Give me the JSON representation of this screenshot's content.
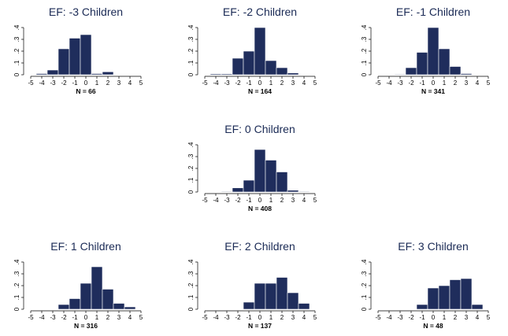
{
  "chart_data": [
    {
      "type": "bar",
      "title": "EF: -3 Children",
      "n_label": "N = 66",
      "x": [
        -5,
        -4,
        -3,
        -2,
        -1,
        0,
        1,
        2,
        3,
        4,
        5
      ],
      "x_ticks": [
        "-5",
        "-4",
        "-3",
        "-2",
        "-1",
        "0",
        "1",
        "2",
        "3",
        "4",
        "5"
      ],
      "values": [
        0,
        0.01,
        0.04,
        0.22,
        0.31,
        0.34,
        0.01,
        0.025,
        0,
        0,
        0
      ],
      "y_ticks": [
        "0",
        ".1",
        ".2",
        ".3",
        ".4"
      ],
      "ylim": [
        0,
        0.4
      ]
    },
    {
      "type": "bar",
      "title": "EF: -2 Children",
      "n_label": "N = 164",
      "x": [
        -5,
        -4,
        -3,
        -2,
        -1,
        0,
        1,
        2,
        3,
        4,
        5
      ],
      "x_ticks": [
        "-5",
        "-4",
        "-3",
        "-2",
        "-1",
        "0",
        "1",
        "2",
        "3",
        "4",
        "5"
      ],
      "values": [
        0,
        0.008,
        0.008,
        0.14,
        0.2,
        0.4,
        0.12,
        0.06,
        0.015,
        0,
        0
      ],
      "y_ticks": [
        "0",
        ".1",
        ".2",
        ".3",
        ".4"
      ],
      "ylim": [
        0,
        0.4
      ]
    },
    {
      "type": "bar",
      "title": "EF: -1 Children",
      "n_label": "N = 341",
      "x": [
        -5,
        -4,
        -3,
        -2,
        -1,
        0,
        1,
        2,
        3,
        4,
        5
      ],
      "x_ticks": [
        "-5",
        "-4",
        "-3",
        "-2",
        "-1",
        "0",
        "1",
        "2",
        "3",
        "4",
        "5"
      ],
      "values": [
        0,
        0,
        0.005,
        0.06,
        0.19,
        0.4,
        0.22,
        0.07,
        0.01,
        0,
        0
      ],
      "y_ticks": [
        "0",
        ".1",
        ".2",
        ".3",
        ".4"
      ],
      "ylim": [
        0,
        0.4
      ]
    },
    {
      "type": "bar",
      "title": "EF: 0 Children",
      "n_label": "N = 408",
      "x": [
        -5,
        -4,
        -3,
        -2,
        -1,
        0,
        1,
        2,
        3,
        4,
        5
      ],
      "x_ticks": [
        "-5",
        "-4",
        "-3",
        "-2",
        "-1",
        "0",
        "1",
        "2",
        "3",
        "4",
        "5"
      ],
      "values": [
        0,
        0,
        0.005,
        0.035,
        0.1,
        0.36,
        0.27,
        0.17,
        0.015,
        0.005,
        0
      ],
      "y_ticks": [
        "0",
        ".1",
        ".2",
        ".3",
        ".4"
      ],
      "ylim": [
        0,
        0.4
      ]
    },
    {
      "type": "bar",
      "title": "EF: 1 Children",
      "n_label": "N = 316",
      "x": [
        -5,
        -4,
        -3,
        -2,
        -1,
        0,
        1,
        2,
        3,
        4,
        5
      ],
      "x_ticks": [
        "-5",
        "-4",
        "-3",
        "-2",
        "-1",
        "0",
        "1",
        "2",
        "3",
        "4",
        "5"
      ],
      "values": [
        0,
        0,
        0,
        0.04,
        0.09,
        0.22,
        0.36,
        0.17,
        0.05,
        0.02,
        0
      ],
      "y_ticks": [
        "0",
        ".1",
        ".2",
        ".3",
        ".4"
      ],
      "ylim": [
        0,
        0.4
      ]
    },
    {
      "type": "bar",
      "title": "EF: 2 Children",
      "n_label": "N = 137",
      "x": [
        -5,
        -4,
        -3,
        -2,
        -1,
        0,
        1,
        2,
        3,
        4,
        5
      ],
      "x_ticks": [
        "-5",
        "-4",
        "-3",
        "-2",
        "-1",
        "0",
        "1",
        "2",
        "3",
        "4",
        "5"
      ],
      "values": [
        0,
        0,
        0,
        0,
        0.06,
        0.22,
        0.22,
        0.27,
        0.14,
        0.05,
        0
      ],
      "y_ticks": [
        "0",
        ".1",
        ".2",
        ".3",
        ".4"
      ],
      "ylim": [
        0,
        0.4
      ]
    },
    {
      "type": "bar",
      "title": "EF: 3 Children",
      "n_label": "N = 48",
      "x": [
        -5,
        -4,
        -3,
        -2,
        -1,
        0,
        1,
        2,
        3,
        4,
        5
      ],
      "x_ticks": [
        "-5",
        "-4",
        "-3",
        "-2",
        "-1",
        "0",
        "1",
        "2",
        "3",
        "4",
        "5"
      ],
      "values": [
        0,
        0,
        0,
        0,
        0.04,
        0.18,
        0.2,
        0.25,
        0.26,
        0.04,
        0
      ],
      "y_ticks": [
        "0",
        ".1",
        ".2",
        ".3",
        ".4"
      ],
      "ylim": [
        0,
        0.4
      ]
    }
  ]
}
